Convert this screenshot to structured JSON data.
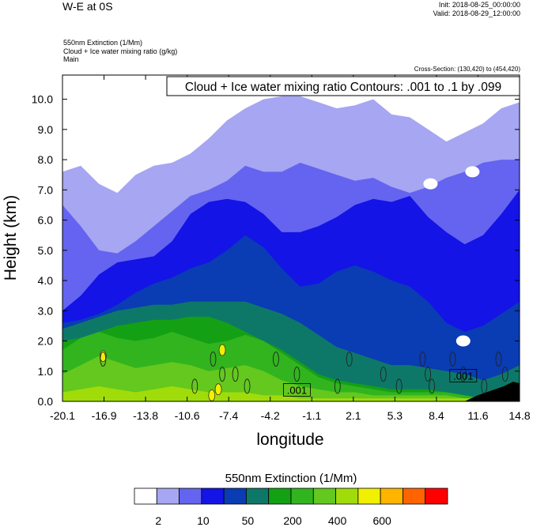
{
  "header": {
    "title": "W-E at 0S",
    "init": "Init: 2018-08-25_00:00:00",
    "valid": "Valid: 2018-08-29_12:00:00",
    "field1": "550nm Extinction   (1/Mm)",
    "field2": "Cloud + Ice water mixing ratio   (g/kg)",
    "field3": "Main",
    "cross_section": "Cross-Section: (130,420) to (454,420)"
  },
  "chart_data": {
    "type": "heatmap",
    "title": "W-E at 0S",
    "xlabel": "longitude",
    "ylabel": "Height (km)",
    "xlim": [
      -20.1,
      14.8
    ],
    "ylim": [
      0.0,
      10.8
    ],
    "x_ticks": [
      "-20.1",
      "-16.9",
      "-13.8",
      "-10.6",
      "-7.4",
      "-4.2",
      "-1.1",
      "2.1",
      "5.3",
      "8.4",
      "11.6",
      "14.8"
    ],
    "y_ticks": [
      "0.0",
      "1.0",
      "2.0",
      "3.0",
      "4.0",
      "5.0",
      "6.0",
      "7.0",
      "8.0",
      "9.0",
      "10.0"
    ],
    "contour_info": "Cloud + Ice water mixing ratio Contours: .001 to .1 by .099",
    "contour_labels": [
      ".001",
      ".001"
    ],
    "colorbar": {
      "title": "550nm Extinction  (1/Mm)",
      "colors": [
        "#ffffff",
        "#a6a6f2",
        "#6464f0",
        "#1414e6",
        "#0a3cb4",
        "#0e7868",
        "#14a014",
        "#32b41e",
        "#64c81e",
        "#a0dc0a",
        "#f0f000",
        "#ffb400",
        "#ff6400",
        "#ff0000"
      ],
      "tick_labels": [
        "2",
        "10",
        "50",
        "200",
        "400",
        "600"
      ]
    },
    "extinction_level_boundaries": [
      {
        "level_index": 1,
        "top_km": [
          7.6,
          7.8,
          7.2,
          6.9,
          7.5,
          7.8,
          7.9,
          8.2,
          8.7,
          9.3,
          9.7,
          10.0,
          10.1,
          10.1,
          9.9,
          9.7,
          9.8,
          10.0,
          9.5,
          9.4,
          9.0,
          8.6,
          8.9,
          9.2,
          9.7,
          9.9
        ]
      },
      {
        "level_index": 2,
        "top_km": [
          6.5,
          5.8,
          5.0,
          4.9,
          5.3,
          5.8,
          6.3,
          6.8,
          7.0,
          7.3,
          7.8,
          7.6,
          7.6,
          7.9,
          7.7,
          7.5,
          7.3,
          7.4,
          7.1,
          6.9,
          7.1,
          7.4,
          7.6,
          7.9,
          8.0,
          8.0
        ]
      },
      {
        "level_index": 3,
        "top_km": [
          3.0,
          3.5,
          4.2,
          4.6,
          4.7,
          4.8,
          5.3,
          6.2,
          6.6,
          6.7,
          6.6,
          6.2,
          5.6,
          5.6,
          5.8,
          6.1,
          6.5,
          6.7,
          6.6,
          6.8,
          6.1,
          5.6,
          5.2,
          5.5,
          6.2,
          7.0
        ]
      },
      {
        "level_index": 4,
        "top_km": [
          2.6,
          2.7,
          2.9,
          3.2,
          3.6,
          3.9,
          4.1,
          4.4,
          4.6,
          5.0,
          5.5,
          5.1,
          4.4,
          3.8,
          3.9,
          4.3,
          4.5,
          4.3,
          4.0,
          3.8,
          3.3,
          2.6,
          2.3,
          2.5,
          2.9,
          3.3
        ]
      },
      {
        "level_index": 5,
        "top_km": [
          2.4,
          2.6,
          2.8,
          3.0,
          3.1,
          3.2,
          3.2,
          3.3,
          3.3,
          3.3,
          3.3,
          3.1,
          2.9,
          2.6,
          2.2,
          1.8,
          1.6,
          1.4,
          1.2,
          1.2,
          1.1,
          1.0,
          0.9,
          0.7,
          0.9,
          1.2
        ]
      },
      {
        "level_index": 6,
        "top_km": [
          2.0,
          2.1,
          2.3,
          2.5,
          2.6,
          2.7,
          2.7,
          2.8,
          2.8,
          2.6,
          2.3,
          2.0,
          1.7,
          1.3,
          0.9,
          0.7,
          0.6,
          0.5,
          0.4,
          0.4,
          0.4,
          0.3,
          0.2,
          0.1,
          0.1,
          0.1
        ]
      },
      {
        "level_index": 7,
        "top_km": [
          1.7,
          2.1,
          2.3,
          2.1,
          2.0,
          2.1,
          2.3,
          2.1,
          1.9,
          2.0,
          2.2,
          2.0,
          1.6,
          1.2,
          0.8,
          0.6,
          0.5,
          0.4,
          0.3,
          0.3,
          0.3,
          0.3,
          0.2,
          0.1,
          0.1,
          0.1
        ]
      },
      {
        "level_index": 8,
        "top_km": [
          0.9,
          1.2,
          1.5,
          1.3,
          1.1,
          1.2,
          1.3,
          1.2,
          1.0,
          1.1,
          1.2,
          1.0,
          0.7,
          0.5,
          0.4,
          0.3,
          0.3,
          0.2,
          0.2,
          0.2,
          0.2,
          0.2,
          0.1,
          0.1,
          0.1,
          0.1
        ]
      },
      {
        "level_index": 9,
        "top_km": [
          0.3,
          0.4,
          0.5,
          0.4,
          0.3,
          0.4,
          0.5,
          0.4,
          0.3,
          0.3,
          0.3,
          0.2,
          0.2,
          0.1,
          0.1,
          0.1,
          0.1,
          0.1,
          0.1,
          0.1,
          0.1,
          0.1,
          0.1,
          0.1,
          0.1,
          0.1
        ]
      }
    ],
    "yellow_spots": [
      {
        "lon": -17.0,
        "height_km": 1.5
      },
      {
        "lon": -7.9,
        "height_km": 1.7
      },
      {
        "lon": -8.7,
        "height_km": 0.2
      },
      {
        "lon": -8.2,
        "height_km": 0.4
      }
    ],
    "white_patches": [
      {
        "lon": 8.0,
        "height_km": 7.2
      },
      {
        "lon": 11.2,
        "height_km": 7.6
      },
      {
        "lon": 10.5,
        "height_km": 2.0
      }
    ],
    "terrain": {
      "lon": [
        10.6,
        11.6,
        12.6,
        13.6,
        14.3,
        14.8
      ],
      "height_km": [
        0.0,
        0.2,
        0.35,
        0.5,
        0.65,
        0.6
      ]
    }
  }
}
